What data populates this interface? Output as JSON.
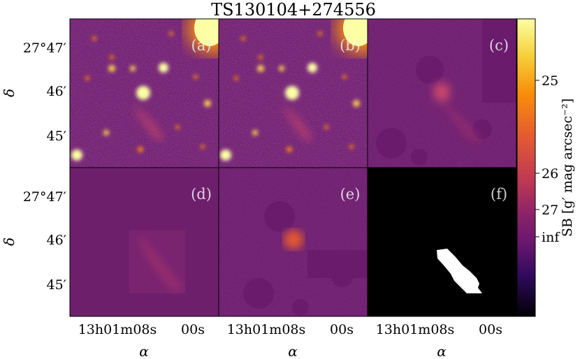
{
  "figure": {
    "title": "TS130104+274556",
    "panels": [
      {
        "id": "a",
        "label": "(a)",
        "type": "image"
      },
      {
        "id": "b",
        "label": "(b)",
        "type": "image"
      },
      {
        "id": "c",
        "label": "(c)",
        "type": "residual"
      },
      {
        "id": "d",
        "label": "(d)",
        "type": "model"
      },
      {
        "id": "e",
        "label": "(e)",
        "type": "residual"
      },
      {
        "id": "f",
        "label": "(f)",
        "type": "mask"
      }
    ],
    "y_axis": {
      "label": "δ",
      "ticks": [
        "27°47′",
        "46′",
        "45′"
      ]
    },
    "x_axis": {
      "label": "α",
      "ticks": [
        "13h01m08s",
        "00s"
      ]
    },
    "colorbar": {
      "label": "SB [g′ mag arcsec⁻²]",
      "ticks": [
        "25",
        "26",
        "27",
        "inf"
      ],
      "colormap": "inferno",
      "colors": [
        "#fcffa4",
        "#f98e09",
        "#bc3754",
        "#57106e",
        "#000004"
      ]
    }
  }
}
